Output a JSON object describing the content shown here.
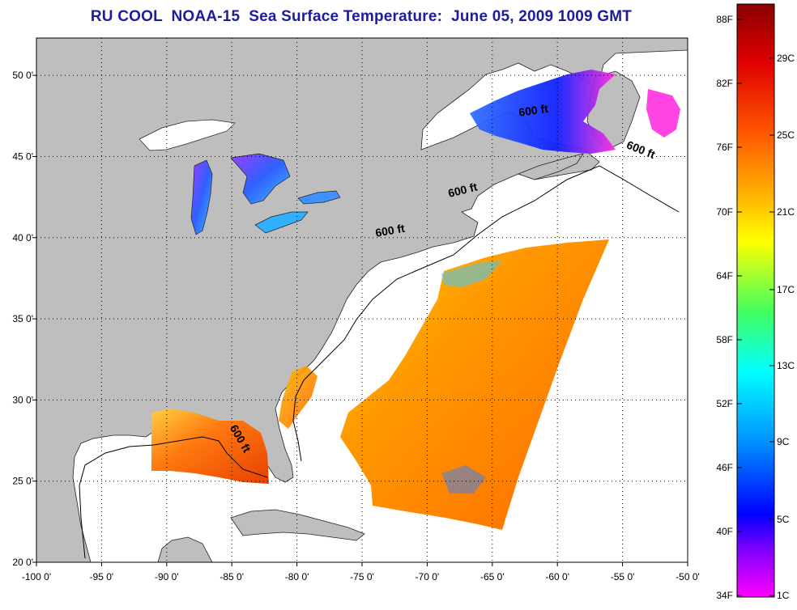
{
  "title": "RU COOL  NOAA-15  Sea Surface Temperature:  June 05, 2009 1009 GMT",
  "map": {
    "lon_range": [
      -100,
      -50
    ],
    "lat_range": [
      20,
      52.3
    ],
    "lon_ticks": [
      {
        "value": -100,
        "label": "-100 0'"
      },
      {
        "value": -95,
        "label": "-95 0'"
      },
      {
        "value": -90,
        "label": "-90 0'"
      },
      {
        "value": -85,
        "label": "-85 0'"
      },
      {
        "value": -80,
        "label": "-80 0'"
      },
      {
        "value": -75,
        "label": "-75 0'"
      },
      {
        "value": -70,
        "label": "-70 0'"
      },
      {
        "value": -65,
        "label": "-65 0'"
      },
      {
        "value": -60,
        "label": "-60 0'"
      },
      {
        "value": -55,
        "label": "-55 0'"
      },
      {
        "value": -50,
        "label": "-50 0'"
      }
    ],
    "lat_ticks": [
      {
        "value": 20,
        "label": "20 0'"
      },
      {
        "value": 25,
        "label": "25 0'"
      },
      {
        "value": 30,
        "label": "30 0'"
      },
      {
        "value": 35,
        "label": "35 0'"
      },
      {
        "value": 40,
        "label": "40 0'"
      },
      {
        "value": 45,
        "label": "45 0'"
      },
      {
        "value": 50,
        "label": "50 0'"
      }
    ],
    "grid": true,
    "land_color": "#bebebe",
    "water_color": "#ffffff",
    "isobath_labels": [
      {
        "text": "600 ft",
        "lon": -61.8,
        "lat": 47.6,
        "angle": -8
      },
      {
        "text": "600 ft",
        "lon": -53.7,
        "lat": 45.2,
        "angle": 22
      },
      {
        "text": "600 ft",
        "lon": -67.2,
        "lat": 42.7,
        "angle": -14
      },
      {
        "text": "600 ft",
        "lon": -72.8,
        "lat": 40.2,
        "angle": -10
      },
      {
        "text": "600 ft",
        "lon": -84.6,
        "lat": 27.5,
        "angle": 60
      }
    ]
  },
  "colorbar": {
    "fahrenheit_labels": [
      "88F",
      "82F",
      "76F",
      "70F",
      "64F",
      "58F",
      "52F",
      "46F",
      "40F",
      "34F"
    ],
    "celsius_labels": [
      "29C",
      "25C",
      "21C",
      "17C",
      "13C",
      "9C",
      "5C",
      "1C"
    ],
    "colors": [
      "#8b0000",
      "#ff0000",
      "#ff8c00",
      "#ffff00",
      "#00ff7f",
      "#00ffff",
      "#0000ff",
      "#7f00ff",
      "#ff00ff"
    ]
  }
}
